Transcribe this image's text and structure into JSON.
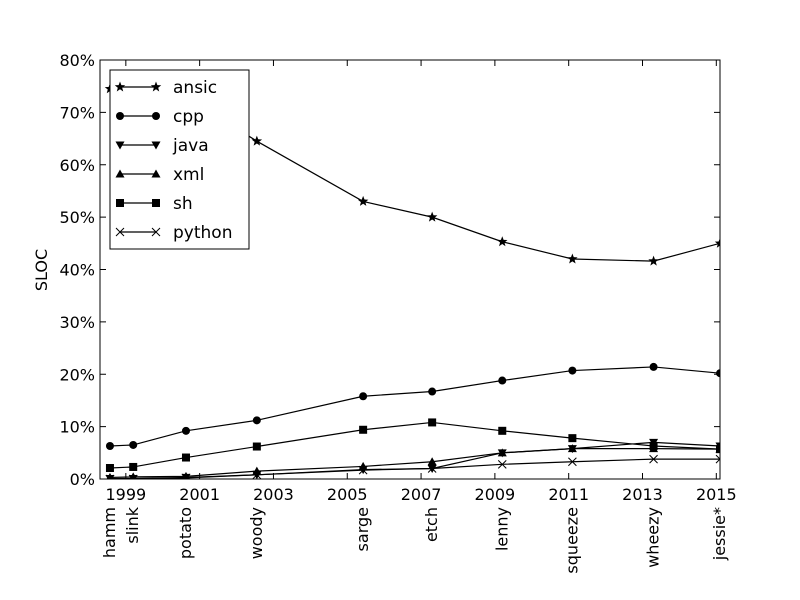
{
  "chart_data": {
    "type": "line",
    "title": "",
    "xlabel": "",
    "ylabel": "SLOC",
    "xlim": [
      1998.3,
      2015.1
    ],
    "ylim": [
      0,
      80
    ],
    "y_ticks": [
      0,
      10,
      20,
      30,
      40,
      50,
      60,
      70,
      80
    ],
    "y_tick_labels": [
      "0%",
      "10%",
      "20%",
      "30%",
      "40%",
      "50%",
      "60%",
      "70%",
      "80%"
    ],
    "x_ticks": [
      1999,
      2001,
      2003,
      2005,
      2007,
      2009,
      2011,
      2013,
      2015
    ],
    "x_tick_labels": [
      "1999",
      "2001",
      "2003",
      "2005",
      "2007",
      "2009",
      "2011",
      "2013",
      "2015"
    ],
    "releases": [
      {
        "name": "hamm",
        "year": 1998.57
      },
      {
        "name": "slink",
        "year": 1999.2
      },
      {
        "name": "potato",
        "year": 2000.63
      },
      {
        "name": "woody",
        "year": 2002.55
      },
      {
        "name": "sarge",
        "year": 2005.43
      },
      {
        "name": "etch",
        "year": 2007.3
      },
      {
        "name": "lenny",
        "year": 2009.2
      },
      {
        "name": "squeeze",
        "year": 2011.1
      },
      {
        "name": "wheezy",
        "year": 2013.3
      },
      {
        "name": "jessie*",
        "year": 2015.1
      }
    ],
    "grid": false,
    "legend_position": "top-left",
    "series": [
      {
        "name": "ansic",
        "marker": "star",
        "values": [
          74.5,
          77.0,
          73.0,
          64.5,
          53.0,
          50.0,
          45.3,
          42.0,
          41.6,
          45.0
        ]
      },
      {
        "name": "cpp",
        "marker": "circle",
        "values": [
          6.3,
          6.5,
          9.2,
          11.2,
          15.8,
          16.7,
          18.8,
          20.7,
          21.4,
          20.2
        ]
      },
      {
        "name": "java",
        "marker": "triangle-down",
        "values": [
          0.1,
          0.1,
          0.3,
          0.8,
          1.8,
          2.0,
          5.0,
          5.8,
          7.0,
          6.3
        ]
      },
      {
        "name": "xml",
        "marker": "triangle-up",
        "values": [
          0.3,
          0.4,
          0.5,
          1.5,
          2.4,
          3.3,
          5.0,
          5.8,
          5.8,
          5.7
        ]
      },
      {
        "name": "sh",
        "marker": "square",
        "values": [
          2.1,
          2.3,
          4.1,
          6.2,
          9.4,
          10.8,
          9.2,
          7.8,
          6.3,
          5.7
        ]
      },
      {
        "name": "python",
        "marker": "x",
        "values": [
          0.0,
          0.0,
          0.2,
          0.8,
          1.7,
          2.0,
          2.8,
          3.3,
          3.8,
          3.8
        ]
      }
    ]
  }
}
